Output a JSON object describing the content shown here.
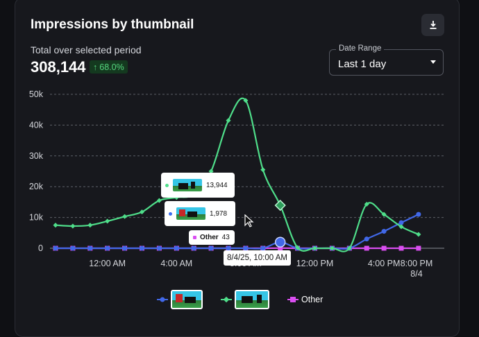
{
  "card": {
    "title": "Impressions by thumbnail",
    "subtitle": "Total over selected period",
    "total": "308,144",
    "change": "68.0%",
    "change_arrow": "↑",
    "download_icon": "download-icon"
  },
  "date_range": {
    "label": "Date Range",
    "value": "Last 1 day"
  },
  "tooltip": {
    "rows": [
      {
        "series": "green-thumbnail",
        "value": "13,944",
        "color": "#4fde8a"
      },
      {
        "series": "blue-thumbnail",
        "value": "1,978",
        "color": "#3b6df0"
      },
      {
        "series": "Other",
        "label": "Other",
        "value": "43",
        "color": "#d94ef0"
      }
    ],
    "date": "8/4/25, 10:00 AM"
  },
  "legend": {
    "other_label": "Other"
  },
  "colors": {
    "green": "#4fde8a",
    "blue": "#4168e8",
    "other": "#d94ef0",
    "accent_up": "#55d77e"
  },
  "chart_data": {
    "type": "line",
    "x": [
      "8/3 9:00 PM",
      "10:00 PM",
      "11:00 PM",
      "12:00 AM",
      "1:00 AM",
      "2:00 AM",
      "3:00 AM",
      "4:00 AM",
      "5:00 AM",
      "6:00 AM",
      "7:00 AM",
      "8:00 AM",
      "9:00 AM",
      "10:00 AM",
      "11:00 AM",
      "12:00 PM",
      "1:00 PM",
      "2:00 PM",
      "3:00 PM",
      "4:00 PM",
      "5:00 PM",
      "6:00 PM"
    ],
    "x_ticks": [
      "12:00 AM",
      "4:00 AM",
      "8:00 AM",
      "12:00 PM",
      "4:00 PM",
      "8:00 PM"
    ],
    "x_tick_sublabel": "8/4",
    "y_ticks": [
      "0",
      "10k",
      "20k",
      "30k",
      "40k",
      "50k"
    ],
    "ylim": [
      0,
      50000
    ],
    "grid": true,
    "legend_position": "bottom",
    "series": [
      {
        "name": "Other",
        "color": "#d94ef0",
        "marker": "square",
        "values": [
          0,
          0,
          0,
          0,
          0,
          0,
          0,
          0,
          0,
          0,
          0,
          0,
          0,
          43,
          0,
          0,
          0,
          0,
          0,
          0,
          0,
          0
        ]
      },
      {
        "color": "#4168e8",
        "marker": "circle",
        "values": [
          0,
          0,
          0,
          0,
          0,
          0,
          0,
          0,
          0,
          0,
          0,
          0,
          0,
          1978,
          0,
          0,
          0,
          0,
          3000,
          5500,
          8300,
          11000
        ]
      },
      {
        "color": "#4fde8a",
        "marker": "diamond",
        "values": [
          7500,
          7200,
          7500,
          8800,
          10300,
          11800,
          15500,
          16500,
          17500,
          25000,
          41500,
          48000,
          25500,
          13944,
          200,
          0,
          0,
          0,
          14300,
          11000,
          7000,
          4500
        ]
      }
    ]
  }
}
